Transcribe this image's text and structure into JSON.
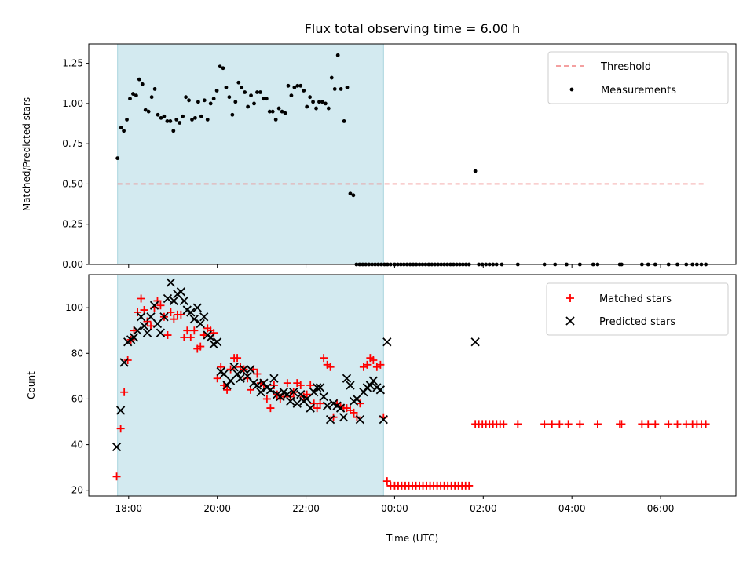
{
  "chart_data": [
    {
      "type": "scatter",
      "title": "Flux total observing time = 6.00 h",
      "xlabel": "",
      "ylabel": "Matched/Predicted stars",
      "x_unit": "hours since 00:00 UTC",
      "xlim": [
        -6.9,
        7.7
      ],
      "ylim": [
        0,
        1.37
      ],
      "yticks": [
        0.0,
        0.25,
        0.5,
        0.75,
        1.0,
        1.25
      ],
      "ytick_labels": [
        "0.00",
        "0.25",
        "0.50",
        "0.75",
        "1.00",
        "1.25"
      ],
      "xticks": [
        -6,
        -4,
        -2,
        0,
        2,
        4,
        6
      ],
      "observing_window": [
        -6.25,
        -0.25
      ],
      "observing_window_color": "#d3eaf0",
      "legend": {
        "position": "upper right",
        "entries": [
          "Threshold",
          "Measurements"
        ]
      },
      "series": [
        {
          "name": "Threshold",
          "kind": "hline",
          "y": 0.5,
          "x_range": [
            -6.25,
            7.0
          ],
          "color": "#f08080",
          "style": "dashed"
        },
        {
          "name": "Measurements",
          "kind": "points",
          "color": "#000000",
          "x": [
            -6.25,
            -6.17,
            -6.11,
            -6.04,
            -5.97,
            -5.9,
            -5.83,
            -5.76,
            -5.69,
            -5.62,
            -5.55,
            -5.48,
            -5.41,
            -5.34,
            -5.27,
            -5.2,
            -5.13,
            -5.06,
            -4.99,
            -4.92,
            -4.85,
            -4.78,
            -4.71,
            -4.64,
            -4.57,
            -4.5,
            -4.43,
            -4.36,
            -4.29,
            -4.22,
            -4.15,
            -4.08,
            -4.01,
            -3.94,
            -3.87,
            -3.8,
            -3.73,
            -3.66,
            -3.59,
            -3.52,
            -3.45,
            -3.38,
            -3.31,
            -3.24,
            -3.17,
            -3.1,
            -3.03,
            -2.96,
            -2.89,
            -2.82,
            -2.75,
            -2.68,
            -2.61,
            -2.54,
            -2.47,
            -2.4,
            -2.33,
            -2.26,
            -2.19,
            -2.12,
            -2.05,
            -1.98,
            -1.91,
            -1.84,
            -1.77,
            -1.7,
            -1.63,
            -1.56,
            -1.49,
            -1.42,
            -1.35,
            -1.28,
            -1.21,
            -1.14,
            -1.07,
            -1.0,
            -0.93,
            -0.86,
            -0.79,
            -0.72,
            -0.65,
            -0.58,
            -0.51,
            -0.44,
            -0.37,
            -0.3,
            -0.23,
            -0.16,
            -0.09,
            0.0,
            0.07,
            0.14,
            0.21,
            0.28,
            0.35,
            0.42,
            0.49,
            0.56,
            0.63,
            0.7,
            0.77,
            0.84,
            0.91,
            0.98,
            1.05,
            1.12,
            1.19,
            1.26,
            1.33,
            1.4,
            1.47,
            1.54,
            1.61,
            1.68,
            1.82,
            1.9,
            1.98,
            2.06,
            2.14,
            2.22,
            2.3,
            2.42,
            2.78,
            3.38,
            3.62,
            3.88,
            4.18,
            4.48,
            4.58,
            5.08,
            5.12,
            5.58,
            5.72,
            5.88,
            6.18,
            6.38,
            6.58,
            6.72,
            6.82,
            6.92,
            7.02
          ],
          "y": [
            0.66,
            0.85,
            0.83,
            0.9,
            1.03,
            1.06,
            1.05,
            1.15,
            1.12,
            0.96,
            0.95,
            1.04,
            1.09,
            0.93,
            0.91,
            0.92,
            0.89,
            0.89,
            0.83,
            0.9,
            0.88,
            0.92,
            1.04,
            1.02,
            0.9,
            0.91,
            1.01,
            0.92,
            1.02,
            0.9,
            1.0,
            1.03,
            1.08,
            1.23,
            1.22,
            1.1,
            1.04,
            0.93,
            1.01,
            1.13,
            1.1,
            1.07,
            0.98,
            1.05,
            1.0,
            1.07,
            1.07,
            1.03,
            1.03,
            0.95,
            0.95,
            0.9,
            0.97,
            0.95,
            0.94,
            1.11,
            1.05,
            1.1,
            1.11,
            1.11,
            1.08,
            0.98,
            1.04,
            1.01,
            0.97,
            1.01,
            1.01,
            1.0,
            0.97,
            1.16,
            1.09,
            1.3,
            1.09,
            0.89,
            1.1,
            0.44,
            0.43,
            0.0,
            0.0,
            0.0,
            0.0,
            0.0,
            0.0,
            0.0,
            0.0,
            0.0,
            0.0,
            0.0,
            0.0,
            0.0,
            0.0,
            0.0,
            0.0,
            0.0,
            0.0,
            0.0,
            0.0,
            0.0,
            0.0,
            0.0,
            0.0,
            0.0,
            0.0,
            0.0,
            0.0,
            0.0,
            0.0,
            0.0,
            0.0,
            0.0,
            0.0,
            0.0,
            0.0,
            0.0,
            0.58,
            0.0,
            0.0,
            0.0,
            0.0,
            0.0,
            0.0,
            0.0,
            0.0,
            0.0,
            0.0,
            0.0,
            0.0,
            0.0,
            0.0,
            0.0,
            0.0,
            0.0,
            0.0,
            0.0,
            0.0,
            0.0,
            0.0,
            0.0,
            0.0,
            0.0,
            0.0
          ]
        }
      ]
    },
    {
      "type": "scatter",
      "title": "",
      "xlabel": "Time (UTC)",
      "ylabel": "Count",
      "x_unit": "hours since 00:00 UTC",
      "xlim": [
        -6.9,
        7.7
      ],
      "ylim": [
        17.5,
        114.5
      ],
      "yticks": [
        20,
        40,
        60,
        80,
        100
      ],
      "ytick_labels": [
        "20",
        "40",
        "60",
        "80",
        "100"
      ],
      "xticks": [
        -6,
        -4,
        -2,
        0,
        2,
        4,
        6
      ],
      "xtick_labels": [
        "18:00",
        "20:00",
        "22:00",
        "00:00",
        "02:00",
        "04:00",
        "06:00"
      ],
      "observing_window": [
        -6.25,
        -0.25
      ],
      "observing_window_color": "#d3eaf0",
      "legend": {
        "position": "upper right",
        "entries": [
          "Matched stars",
          "Predicted stars"
        ]
      },
      "series": [
        {
          "name": "Matched stars",
          "marker": "plus",
          "color": "#ff0000",
          "x": [
            -6.27,
            -6.18,
            -6.1,
            -6.02,
            -5.95,
            -5.88,
            -5.8,
            -5.72,
            -5.65,
            -5.58,
            -5.5,
            -5.42,
            -5.35,
            -5.28,
            -5.2,
            -5.12,
            -5.05,
            -4.98,
            -4.9,
            -4.82,
            -4.75,
            -4.68,
            -4.6,
            -4.52,
            -4.45,
            -4.38,
            -4.3,
            -4.22,
            -4.15,
            -4.08,
            -4.0,
            -3.92,
            -3.85,
            -3.78,
            -3.7,
            -3.62,
            -3.55,
            -3.48,
            -3.4,
            -3.32,
            -3.25,
            -3.18,
            -3.1,
            -3.02,
            -2.95,
            -2.88,
            -2.8,
            -2.72,
            -2.65,
            -2.58,
            -2.5,
            -2.42,
            -2.35,
            -2.28,
            -2.2,
            -2.12,
            -2.05,
            -1.98,
            -1.9,
            -1.82,
            -1.75,
            -1.68,
            -1.6,
            -1.52,
            -1.45,
            -1.38,
            -1.3,
            -1.22,
            -1.15,
            -1.08,
            -1.0,
            -0.92,
            -0.85,
            -0.78,
            -0.7,
            -0.62,
            -0.55,
            -0.48,
            -0.4,
            -0.32,
            -0.25,
            -0.17,
            -0.09,
            0.0,
            0.08,
            0.16,
            0.24,
            0.32,
            0.4,
            0.48,
            0.56,
            0.64,
            0.72,
            0.8,
            0.88,
            0.96,
            1.04,
            1.12,
            1.2,
            1.28,
            1.36,
            1.44,
            1.52,
            1.6,
            1.68,
            1.82,
            1.9,
            1.98,
            2.06,
            2.14,
            2.22,
            2.3,
            2.38,
            2.46,
            2.78,
            3.38,
            3.55,
            3.72,
            3.92,
            4.18,
            4.58,
            5.08,
            5.12,
            5.58,
            5.72,
            5.88,
            6.18,
            6.38,
            6.58,
            6.72,
            6.82,
            6.92,
            7.02
          ],
          "y": [
            26,
            47,
            63,
            77,
            86,
            90,
            98,
            104,
            99,
            94,
            92,
            100,
            103,
            101,
            96,
            88,
            98,
            95,
            97,
            97,
            87,
            90,
            87,
            90,
            82,
            83,
            88,
            91,
            90,
            89,
            69,
            74,
            66,
            64,
            73,
            78,
            78,
            74,
            73,
            69,
            64,
            73,
            71,
            67,
            66,
            60,
            56,
            66,
            62,
            60,
            61,
            67,
            61,
            63,
            67,
            66,
            61,
            62,
            66,
            58,
            56,
            58,
            78,
            75,
            74,
            52,
            58,
            57,
            56,
            56,
            55,
            54,
            52,
            58,
            74,
            75,
            78,
            77,
            74,
            75,
            52,
            24,
            22,
            22,
            22,
            22,
            22,
            22,
            22,
            22,
            22,
            22,
            22,
            22,
            22,
            22,
            22,
            22,
            22,
            22,
            22,
            22,
            22,
            22,
            22,
            49,
            49,
            49,
            49,
            49,
            49,
            49,
            49,
            49,
            49,
            49,
            49,
            49,
            49,
            49,
            49,
            49,
            49,
            49,
            49,
            49,
            49,
            49,
            49,
            49,
            49,
            49,
            49
          ]
        },
        {
          "name": "Predicted stars",
          "marker": "x",
          "color": "#000000",
          "x": [
            -6.27,
            -6.18,
            -6.1,
            -6.02,
            -5.95,
            -5.88,
            -5.8,
            -5.72,
            -5.65,
            -5.58,
            -5.5,
            -5.42,
            -5.35,
            -5.28,
            -5.2,
            -5.12,
            -5.05,
            -4.98,
            -4.9,
            -4.82,
            -4.75,
            -4.68,
            -4.6,
            -4.52,
            -4.45,
            -4.38,
            -4.3,
            -4.22,
            -4.15,
            -4.08,
            -4.0,
            -3.92,
            -3.85,
            -3.78,
            -3.7,
            -3.62,
            -3.55,
            -3.48,
            -3.4,
            -3.32,
            -3.25,
            -3.18,
            -3.1,
            -3.02,
            -2.95,
            -2.88,
            -2.8,
            -2.72,
            -2.65,
            -2.58,
            -2.5,
            -2.42,
            -2.35,
            -2.28,
            -2.2,
            -2.12,
            -2.05,
            -1.98,
            -1.9,
            -1.82,
            -1.75,
            -1.68,
            -1.6,
            -1.52,
            -1.45,
            -1.38,
            -1.3,
            -1.22,
            -1.15,
            -1.08,
            -1.0,
            -0.92,
            -0.85,
            -0.78,
            -0.7,
            -0.62,
            -0.55,
            -0.48,
            -0.4,
            -0.32,
            -0.25,
            -0.17,
            1.82
          ],
          "y": [
            39,
            55,
            76,
            85,
            86,
            87,
            90,
            96,
            92,
            89,
            96,
            101,
            93,
            89,
            96,
            104,
            111,
            103,
            106,
            107,
            103,
            99,
            98,
            95,
            100,
            93,
            96,
            88,
            87,
            84,
            85,
            72,
            71,
            66,
            68,
            74,
            71,
            69,
            73,
            70,
            73,
            67,
            66,
            63,
            67,
            65,
            64,
            69,
            62,
            61,
            63,
            62,
            59,
            63,
            58,
            62,
            59,
            60,
            56,
            63,
            65,
            65,
            61,
            57,
            51,
            58,
            57,
            56,
            52,
            69,
            66,
            59,
            60,
            51,
            63,
            65,
            66,
            68,
            65,
            64,
            51,
            85,
            85
          ]
        }
      ]
    }
  ]
}
